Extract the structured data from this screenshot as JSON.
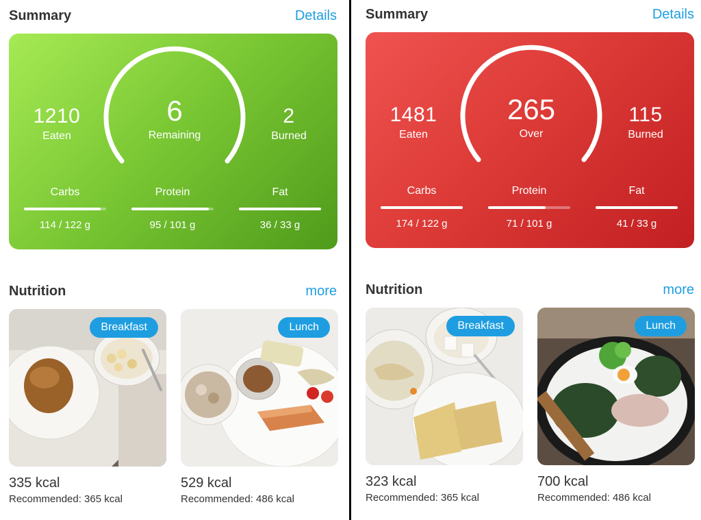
{
  "left": {
    "summary_title": "Summary",
    "details_label": "Details",
    "eaten_value": "1210",
    "eaten_label": "Eaten",
    "center_value": "6",
    "center_label": "Remaining",
    "burned_value": "2",
    "burned_label": "Burned",
    "macros": [
      {
        "label": "Carbs",
        "value": "114 / 122 g",
        "progress": 0.93
      },
      {
        "label": "Protein",
        "value": "95 / 101 g",
        "progress": 0.94
      },
      {
        "label": "Fat",
        "value": "36 / 33 g",
        "progress": 1.0
      }
    ],
    "nutrition_title": "Nutrition",
    "more_label": "more",
    "meals": [
      {
        "badge": "Breakfast",
        "kcal": "335 kcal",
        "recommended": "Recommended: 365 kcal"
      },
      {
        "badge": "Lunch",
        "kcal": "529 kcal",
        "recommended": "Recommended: 486 kcal"
      }
    ]
  },
  "right": {
    "summary_title": "Summary",
    "details_label": "Details",
    "eaten_value": "1481",
    "eaten_label": "Eaten",
    "center_value": "265",
    "center_label": "Over",
    "burned_value": "115",
    "burned_label": "Burned",
    "macros": [
      {
        "label": "Carbs",
        "value": "174 / 122 g",
        "progress": 1.0
      },
      {
        "label": "Protein",
        "value": "71 / 101 g",
        "progress": 0.7
      },
      {
        "label": "Fat",
        "value": "41 / 33 g",
        "progress": 1.0
      }
    ],
    "nutrition_title": "Nutrition",
    "more_label": "more",
    "meals": [
      {
        "badge": "Breakfast",
        "kcal": "323 kcal",
        "recommended": "Recommended: 365 kcal"
      },
      {
        "badge": "Lunch",
        "kcal": "700 kcal",
        "recommended": "Recommended: 486 kcal"
      }
    ]
  },
  "colors": {
    "accent": "#1e9ee0",
    "card_green": "#7cc935",
    "card_red": "#dd3b37"
  }
}
